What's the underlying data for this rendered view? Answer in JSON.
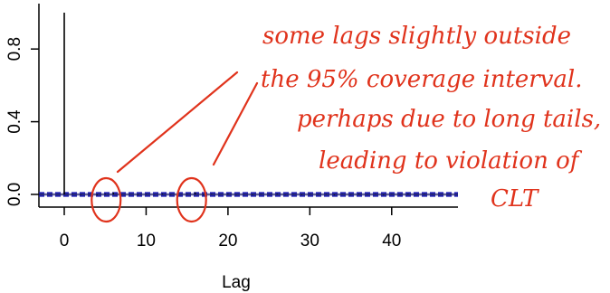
{
  "chart_data": {
    "type": "bar",
    "plot_style": "acf-spikes",
    "xlabel": "Lag",
    "ylabel": "",
    "xlim": [
      0,
      45
    ],
    "ylim": [
      -0.02,
      1.0
    ],
    "x_ticks": [
      0,
      10,
      20,
      30,
      40
    ],
    "y_ticks": [
      0.0,
      0.4,
      0.8
    ],
    "x_tick_labels": [
      "0",
      "10",
      "20",
      "30",
      "40"
    ],
    "y_tick_labels": [
      "0.0",
      "0.4",
      "0.8"
    ],
    "confidence_band": {
      "lower": -0.008,
      "upper": 0.008,
      "color": "#1f1fb0"
    },
    "lags": [
      0,
      1,
      2,
      3,
      4,
      5,
      6,
      7,
      8,
      9,
      10,
      11,
      12,
      13,
      14,
      15,
      16,
      17,
      18,
      19,
      20,
      21,
      22,
      23,
      24,
      25,
      26,
      27,
      28,
      29,
      30,
      31,
      32,
      33,
      34,
      35,
      36,
      37,
      38,
      39,
      40,
      41,
      42,
      43,
      44,
      45
    ],
    "acf": [
      1.0,
      0.003,
      -0.004,
      0.002,
      -0.005,
      0.004,
      0.011,
      -0.003,
      0.002,
      -0.004,
      0.003,
      -0.002,
      0.004,
      -0.003,
      0.002,
      0.003,
      0.012,
      -0.004,
      0.003,
      -0.002,
      0.004,
      -0.003,
      0.002,
      -0.004,
      0.003,
      -0.002,
      0.004,
      -0.003,
      0.002,
      -0.004,
      0.003,
      -0.002,
      0.003,
      -0.004,
      0.002,
      -0.003,
      0.004,
      -0.002,
      0.003,
      -0.004,
      0.002,
      -0.003,
      0.004,
      -0.002,
      0.003,
      -0.002
    ],
    "annotation_lines": [
      "some lags slightly outside",
      "the 95% coverage interval.",
      "perhaps due to long tails,",
      "leading to violation of",
      "CLT"
    ],
    "highlighted_lags": [
      6,
      16
    ],
    "annotation_color": "#e0331c"
  }
}
